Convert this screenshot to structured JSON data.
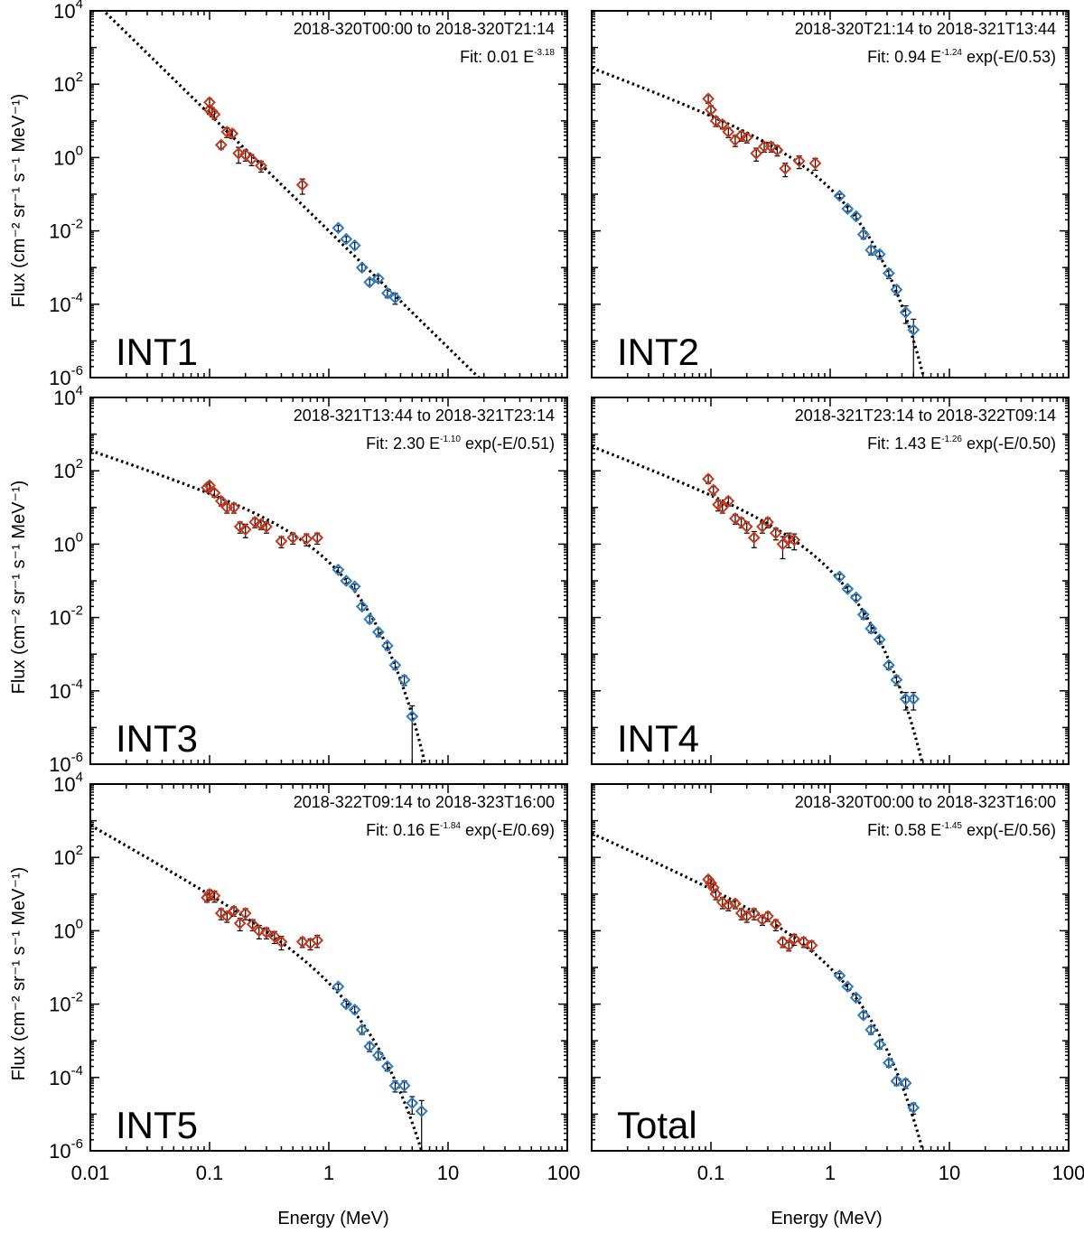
{
  "figure": {
    "y_axis_label": "Flux (cm⁻² sr⁻¹ s⁻¹ MeV⁻¹)",
    "x_axis_label": "Energy (MeV)"
  },
  "colors": {
    "low_energy": "#C8381C",
    "high_energy": "#2E7CC4",
    "fit": "#000000",
    "errorbar": "#000000"
  },
  "chart_data": [
    {
      "type": "scatter",
      "name": "INT1",
      "interval": "2018-320T00:00 to 2018-320T21:14",
      "fit_prefix": "Fit: 0.01 E",
      "fit_exponent": "-3.18",
      "fit_suffix": "",
      "fit": {
        "A": 0.01,
        "gamma": -3.18,
        "E0": null
      },
      "xscale": "log",
      "yscale": "log",
      "xlim": [
        0.01,
        100
      ],
      "ylim": [
        1e-06,
        10000.0
      ],
      "x_ticks": [
        "0.01",
        "0.1",
        "1",
        "10",
        "100"
      ],
      "y_ticks": [
        "10^-6",
        "10^-4",
        "10^-2",
        "10^0",
        "10^2",
        "10^4"
      ],
      "series": [
        {
          "name": "low energy",
          "color": "#C8381C",
          "points": [
            [
              0.1,
              32,
              8
            ],
            [
              0.1,
              20,
              5
            ],
            [
              0.105,
              18,
              5
            ],
            [
              0.11,
              15,
              4
            ],
            [
              0.125,
              2.2,
              0.5
            ],
            [
              0.14,
              5,
              1.5
            ],
            [
              0.155,
              4.5,
              1.2
            ],
            [
              0.175,
              1.3,
              0.6
            ],
            [
              0.2,
              1.2,
              0.4
            ],
            [
              0.225,
              0.9,
              0.3
            ],
            [
              0.27,
              0.6,
              0.2
            ],
            [
              0.6,
              0.18,
              0.08
            ]
          ]
        },
        {
          "name": "high energy",
          "color": "#2E7CC4",
          "points": [
            [
              1.2,
              0.012,
              0.002
            ],
            [
              1.4,
              0.006,
              0.001
            ],
            [
              1.65,
              0.004,
              0.0008
            ],
            [
              1.9,
              0.001,
              0.0002
            ],
            [
              2.2,
              0.0004,
              8e-05
            ],
            [
              2.6,
              0.0005,
              0.0001
            ],
            [
              3.1,
              0.0002,
              5e-05
            ],
            [
              3.6,
              0.00015,
              5e-05
            ]
          ]
        }
      ]
    },
    {
      "type": "scatter",
      "name": "INT2",
      "interval": "2018-320T21:14 to 2018-321T13:44",
      "fit_prefix": "Fit: 0.94 E",
      "fit_exponent": "-1.24",
      "fit_suffix": " exp(-E/0.53)",
      "fit": {
        "A": 0.94,
        "gamma": -1.24,
        "E0": 0.53
      },
      "xscale": "log",
      "yscale": "log",
      "xlim": [
        0.01,
        100
      ],
      "ylim": [
        1e-06,
        10000.0
      ],
      "x_ticks": [
        "0.01",
        "0.1",
        "1",
        "10",
        "100"
      ],
      "y_ticks": [
        "10^-6",
        "10^-4",
        "10^-2",
        "10^0",
        "10^2",
        "10^4"
      ],
      "series": [
        {
          "name": "low energy",
          "color": "#C8381C",
          "points": [
            [
              0.095,
              40,
              10
            ],
            [
              0.1,
              20,
              6
            ],
            [
              0.11,
              10,
              3
            ],
            [
              0.125,
              8,
              2
            ],
            [
              0.14,
              5,
              1.5
            ],
            [
              0.16,
              3,
              1
            ],
            [
              0.18,
              4,
              1.2
            ],
            [
              0.2,
              3.5,
              1
            ],
            [
              0.24,
              1.3,
              0.5
            ],
            [
              0.28,
              2,
              0.6
            ],
            [
              0.32,
              2,
              0.6
            ],
            [
              0.36,
              1.6,
              0.5
            ],
            [
              0.42,
              0.5,
              0.2
            ],
            [
              0.55,
              0.8,
              0.3
            ],
            [
              0.75,
              0.7,
              0.25
            ]
          ]
        },
        {
          "name": "high energy",
          "color": "#2E7CC4",
          "points": [
            [
              1.2,
              0.09,
              0.01
            ],
            [
              1.4,
              0.04,
              0.006
            ],
            [
              1.65,
              0.025,
              0.005
            ],
            [
              1.9,
              0.008,
              0.002
            ],
            [
              2.2,
              0.003,
              0.0008
            ],
            [
              2.6,
              0.0023,
              0.0006
            ],
            [
              3.1,
              0.0007,
              0.0002
            ],
            [
              3.6,
              0.00025,
              7e-05
            ],
            [
              4.3,
              6e-05,
              3e-05
            ],
            [
              5.0,
              2e-05,
              1.9e-05
            ]
          ]
        }
      ]
    },
    {
      "type": "scatter",
      "name": "INT3",
      "interval": "2018-321T13:44 to 2018-321T23:14",
      "fit_prefix": "Fit: 2.30 E",
      "fit_exponent": "-1.10",
      "fit_suffix": " exp(-E/0.51)",
      "fit": {
        "A": 2.3,
        "gamma": -1.1,
        "E0": 0.51
      },
      "xscale": "log",
      "yscale": "log",
      "xlim": [
        0.01,
        100
      ],
      "ylim": [
        1e-06,
        10000.0
      ],
      "x_ticks": [
        "0.01",
        "0.1",
        "1",
        "10",
        "100"
      ],
      "y_ticks": [
        "10^-6",
        "10^-4",
        "10^-2",
        "10^0",
        "10^2",
        "10^4"
      ],
      "series": [
        {
          "name": "low energy",
          "color": "#C8381C",
          "points": [
            [
              0.095,
              35,
              8
            ],
            [
              0.1,
              40,
              9
            ],
            [
              0.11,
              25,
              6
            ],
            [
              0.125,
              15,
              4
            ],
            [
              0.14,
              10,
              3
            ],
            [
              0.16,
              10,
              3
            ],
            [
              0.18,
              3,
              1
            ],
            [
              0.2,
              2.5,
              1
            ],
            [
              0.24,
              4,
              1.2
            ],
            [
              0.27,
              3.5,
              1
            ],
            [
              0.3,
              3,
              1
            ],
            [
              0.4,
              1.2,
              0.4
            ],
            [
              0.5,
              1.5,
              0.5
            ],
            [
              0.65,
              1.4,
              0.5
            ],
            [
              0.8,
              1.5,
              0.5
            ]
          ]
        },
        {
          "name": "high energy",
          "color": "#2E7CC4",
          "points": [
            [
              1.2,
              0.2,
              0.03
            ],
            [
              1.4,
              0.1,
              0.015
            ],
            [
              1.65,
              0.07,
              0.01
            ],
            [
              1.9,
              0.02,
              0.004
            ],
            [
              2.2,
              0.009,
              0.002
            ],
            [
              2.6,
              0.004,
              0.001
            ],
            [
              3.1,
              0.0017,
              0.0004
            ],
            [
              3.6,
              0.0005,
              0.00012
            ],
            [
              4.3,
              0.0002,
              6e-05
            ],
            [
              5.0,
              2e-05,
              1.9e-05
            ]
          ]
        }
      ]
    },
    {
      "type": "scatter",
      "name": "INT4",
      "interval": "2018-321T23:14 to 2018-322T09:14",
      "fit_prefix": "Fit: 1.43 E",
      "fit_exponent": "-1.26",
      "fit_suffix": " exp(-E/0.50)",
      "fit": {
        "A": 1.43,
        "gamma": -1.26,
        "E0": 0.5
      },
      "xscale": "log",
      "yscale": "log",
      "xlim": [
        0.01,
        100
      ],
      "ylim": [
        1e-06,
        10000.0
      ],
      "x_ticks": [
        "0.01",
        "0.1",
        "1",
        "10",
        "100"
      ],
      "y_ticks": [
        "10^-6",
        "10^-4",
        "10^-2",
        "10^0",
        "10^2",
        "10^4"
      ],
      "series": [
        {
          "name": "low energy",
          "color": "#C8381C",
          "points": [
            [
              0.095,
              60,
              15
            ],
            [
              0.105,
              30,
              8
            ],
            [
              0.115,
              12,
              4
            ],
            [
              0.125,
              10,
              3
            ],
            [
              0.14,
              15,
              4
            ],
            [
              0.16,
              5,
              1.5
            ],
            [
              0.18,
              4,
              1.2
            ],
            [
              0.2,
              3,
              1
            ],
            [
              0.23,
              1.5,
              0.7
            ],
            [
              0.27,
              3,
              1
            ],
            [
              0.3,
              4,
              1.2
            ],
            [
              0.35,
              2,
              0.7
            ],
            [
              0.4,
              1,
              0.6
            ],
            [
              0.45,
              1.4,
              0.6
            ],
            [
              0.5,
              1.3,
              0.6
            ]
          ]
        },
        {
          "name": "high energy",
          "color": "#2E7CC4",
          "points": [
            [
              1.2,
              0.13,
              0.02
            ],
            [
              1.4,
              0.06,
              0.01
            ],
            [
              1.65,
              0.035,
              0.006
            ],
            [
              1.9,
              0.012,
              0.003
            ],
            [
              2.2,
              0.005,
              0.0012
            ],
            [
              2.6,
              0.0025,
              0.0006
            ],
            [
              3.1,
              0.0005,
              0.00012
            ],
            [
              3.6,
              0.0002,
              6e-05
            ],
            [
              4.3,
              6e-05,
              3e-05
            ],
            [
              5.0,
              6e-05,
              3e-05
            ]
          ]
        }
      ]
    },
    {
      "type": "scatter",
      "name": "INT5",
      "interval": "2018-322T09:14 to 2018-323T16:00",
      "fit_prefix": "Fit: 0.16 E",
      "fit_exponent": "-1.84",
      "fit_suffix": " exp(-E/0.69)",
      "fit": {
        "A": 0.16,
        "gamma": -1.84,
        "E0": 0.69
      },
      "xscale": "log",
      "yscale": "log",
      "xlim": [
        0.01,
        100
      ],
      "ylim": [
        1e-06,
        10000.0
      ],
      "x_ticks": [
        "0.01",
        "0.1",
        "1",
        "10",
        "100"
      ],
      "y_ticks": [
        "10^-6",
        "10^-4",
        "10^-2",
        "10^0",
        "10^2",
        "10^4"
      ],
      "series": [
        {
          "name": "low energy",
          "color": "#C8381C",
          "points": [
            [
              0.095,
              8,
              2
            ],
            [
              0.1,
              10,
              3
            ],
            [
              0.11,
              9,
              3
            ],
            [
              0.125,
              3,
              1
            ],
            [
              0.14,
              2.5,
              0.8
            ],
            [
              0.16,
              3.5,
              1
            ],
            [
              0.18,
              1.6,
              0.6
            ],
            [
              0.2,
              3,
              1
            ],
            [
              0.23,
              1.5,
              0.5
            ],
            [
              0.26,
              1,
              0.4
            ],
            [
              0.3,
              0.9,
              0.3
            ],
            [
              0.35,
              0.7,
              0.25
            ],
            [
              0.4,
              0.5,
              0.2
            ],
            [
              0.6,
              0.5,
              0.15
            ],
            [
              0.7,
              0.45,
              0.15
            ],
            [
              0.8,
              0.55,
              0.2
            ]
          ]
        },
        {
          "name": "high energy",
          "color": "#2E7CC4",
          "points": [
            [
              1.2,
              0.03,
              0.005
            ],
            [
              1.4,
              0.01,
              0.002
            ],
            [
              1.65,
              0.007,
              0.0015
            ],
            [
              1.9,
              0.002,
              0.0005
            ],
            [
              2.2,
              0.0007,
              0.0002
            ],
            [
              2.6,
              0.0004,
              0.0001
            ],
            [
              3.1,
              0.0002,
              5e-05
            ],
            [
              3.6,
              6e-05,
              2e-05
            ],
            [
              4.3,
              6e-05,
              2e-05
            ],
            [
              5.0,
              2e-05,
              1e-05
            ],
            [
              6.0,
              1.2e-05,
              1.15e-05
            ]
          ]
        }
      ]
    },
    {
      "type": "scatter",
      "name": "Total",
      "interval": "2018-320T00:00 to 2018-323T16:00",
      "fit_prefix": "Fit: 0.58 E",
      "fit_exponent": "-1.45",
      "fit_suffix": " exp(-E/0.56)",
      "fit": {
        "A": 0.58,
        "gamma": -1.45,
        "E0": 0.56
      },
      "xscale": "log",
      "yscale": "log",
      "xlim": [
        0.01,
        100
      ],
      "ylim": [
        1e-06,
        10000.0
      ],
      "x_ticks": [
        "0.01",
        "0.1",
        "1",
        "10",
        "100"
      ],
      "y_ticks": [
        "10^-6",
        "10^-4",
        "10^-2",
        "10^0",
        "10^2",
        "10^4"
      ],
      "series": [
        {
          "name": "low energy",
          "color": "#C8381C",
          "points": [
            [
              0.095,
              25,
              6
            ],
            [
              0.1,
              20,
              5
            ],
            [
              0.105,
              15,
              4
            ],
            [
              0.11,
              10,
              3
            ],
            [
              0.125,
              6,
              2
            ],
            [
              0.14,
              5,
              1.5
            ],
            [
              0.16,
              5.5,
              1.5
            ],
            [
              0.18,
              3,
              1
            ],
            [
              0.2,
              2.5,
              0.8
            ],
            [
              0.23,
              3,
              1
            ],
            [
              0.27,
              2,
              0.6
            ],
            [
              0.3,
              2.5,
              0.7
            ],
            [
              0.35,
              1.5,
              0.5
            ],
            [
              0.4,
              0.5,
              0.15
            ],
            [
              0.45,
              0.4,
              0.12
            ],
            [
              0.5,
              0.6,
              0.2
            ],
            [
              0.6,
              0.5,
              0.15
            ],
            [
              0.7,
              0.4,
              0.12
            ]
          ]
        },
        {
          "name": "high energy",
          "color": "#2E7CC4",
          "points": [
            [
              1.2,
              0.06,
              0.008
            ],
            [
              1.4,
              0.03,
              0.005
            ],
            [
              1.65,
              0.015,
              0.003
            ],
            [
              1.9,
              0.005,
              0.001
            ],
            [
              2.2,
              0.002,
              0.0005
            ],
            [
              2.6,
              0.0008,
              0.0002
            ],
            [
              3.1,
              0.00025,
              6e-05
            ],
            [
              3.6,
              8e-05,
              2e-05
            ],
            [
              4.3,
              7e-05,
              2e-05
            ],
            [
              5.0,
              1.5e-05,
              5e-06
            ]
          ]
        }
      ]
    }
  ]
}
